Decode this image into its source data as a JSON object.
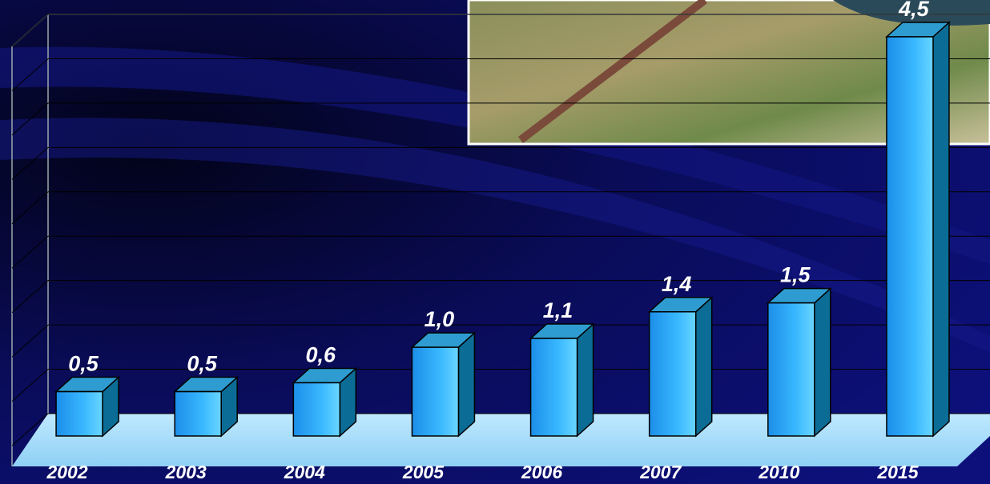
{
  "chart_data": {
    "type": "bar3d",
    "categories": [
      "2002",
      "2003",
      "2004",
      "2005",
      "2006",
      "2007",
      "2010",
      "2015"
    ],
    "values": [
      0.5,
      0.5,
      0.6,
      1.0,
      1.1,
      1.4,
      1.5,
      4.5
    ],
    "value_labels": [
      "0,5",
      "0,5",
      "0,6",
      "1,0",
      "1,1",
      "1,4",
      "1,5",
      "4,5"
    ],
    "color": "#2aa8f2",
    "ylim": [
      0,
      4.5
    ],
    "yticks": [
      0,
      0.5,
      1,
      1.5,
      2,
      2.5,
      3,
      3.5,
      4,
      4.5
    ],
    "grid": true
  }
}
